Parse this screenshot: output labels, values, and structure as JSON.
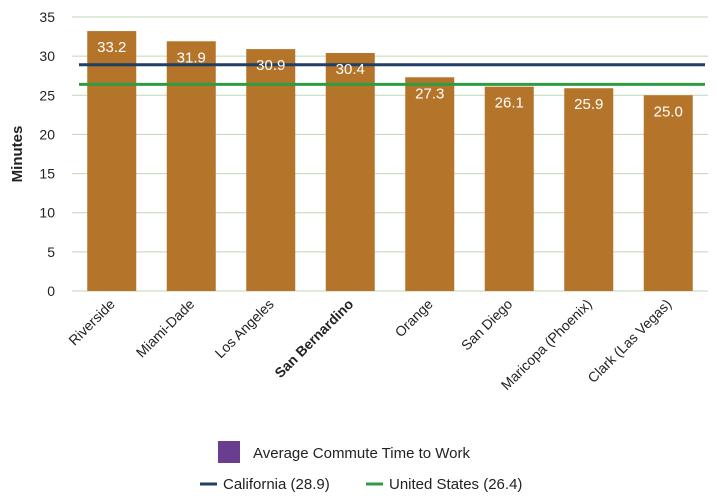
{
  "chart_data": {
    "type": "bar",
    "categories": [
      "Riverside",
      "Miami-Dade",
      "Los Angeles",
      "San Bernardino",
      "Orange",
      "San Diego",
      "Maricopa (Phoenix)",
      "Clark (Las Vegas)"
    ],
    "highlight_category": "San Bernardino",
    "values": [
      33.2,
      31.9,
      30.9,
      30.4,
      27.3,
      26.1,
      25.9,
      25.0
    ],
    "value_labels": [
      "33.2",
      "31.9",
      "30.9",
      "30.4",
      "27.3",
      "26.1",
      "25.9",
      "25.0"
    ],
    "series_name": "Average Commute Time to Work",
    "reference_lines": [
      {
        "name": "California (28.9)",
        "value": 28.9,
        "color": "#1f3f66"
      },
      {
        "name": "United States (26.4)",
        "value": 26.4,
        "color": "#2e9b45"
      }
    ],
    "ylabel": "Minutes",
    "ylim": [
      0,
      35
    ],
    "yticks": [
      0,
      5,
      10,
      15,
      20,
      25,
      30,
      35
    ],
    "grid": true,
    "legend_position": "bottom",
    "colors": {
      "bar": "#b4742a",
      "legend_swatch": "#6b3d8e",
      "grid": "#bfd7b0"
    }
  }
}
